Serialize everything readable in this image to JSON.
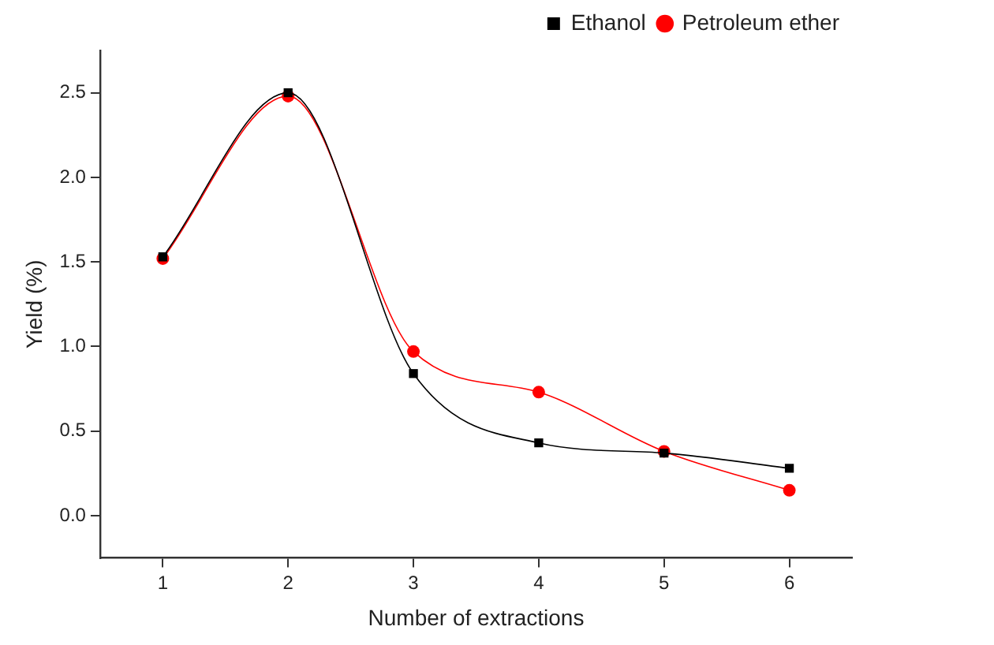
{
  "chart_data": {
    "type": "line",
    "xlabel": "Number of extractions",
    "ylabel": "Yield (%)",
    "x": [
      1,
      2,
      3,
      4,
      5,
      6
    ],
    "series": [
      {
        "name": "Ethanol",
        "color": "#000000",
        "marker": "square",
        "values": [
          1.53,
          2.5,
          0.84,
          0.43,
          0.37,
          0.28
        ]
      },
      {
        "name": "Petroleum ether",
        "color": "#ff0000",
        "marker": "circle",
        "values": [
          1.52,
          2.48,
          0.97,
          0.73,
          0.38,
          0.15
        ]
      }
    ],
    "xlim": [
      0.5,
      6.5
    ],
    "xticks": [
      1,
      2,
      3,
      4,
      5,
      6
    ],
    "ylim": [
      -0.25,
      2.75
    ],
    "yticks": [
      {
        "value": 0,
        "label": "0.0"
      },
      0.5,
      {
        "value": 1,
        "label": "1.0"
      },
      1.5,
      {
        "value": 2,
        "label": "2.0"
      },
      2.5
    ],
    "grid": false,
    "legend": "top right",
    "line_style": "solid"
  }
}
